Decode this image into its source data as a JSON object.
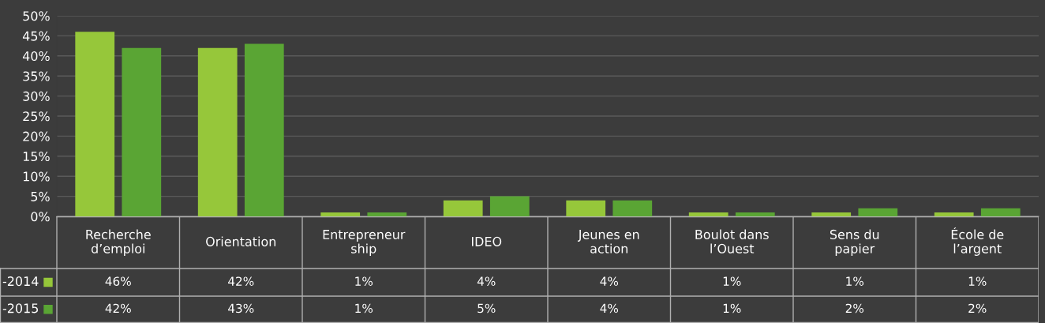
{
  "chart_data": {
    "type": "bar",
    "categories": [
      "Recherche\nd’emploi",
      "Orientation",
      "Entrepreneur\nship",
      "IDEO",
      "Jeunes en\naction",
      "Boulot dans\nl’Ouest",
      "Sens du\npapier",
      "École de\nl’argent"
    ],
    "series": [
      {
        "name": "-2014",
        "color": "#96c73a",
        "values": [
          46,
          42,
          1,
          4,
          4,
          1,
          1,
          1
        ],
        "value_labels": [
          "46%",
          "42%",
          "1%",
          "4%",
          "4%",
          "1%",
          "1%",
          "1%"
        ]
      },
      {
        "name": "-2015",
        "color": "#5aa534",
        "values": [
          42,
          43,
          1,
          5,
          4,
          1,
          2,
          2
        ],
        "value_labels": [
          "42%",
          "43%",
          "1%",
          "5%",
          "4%",
          "1%",
          "2%",
          "2%"
        ]
      }
    ],
    "ylim": [
      0,
      50
    ],
    "yticks": [
      {
        "value": 0,
        "label": "0%"
      },
      {
        "value": 5,
        "label": "5%"
      },
      {
        "value": 10,
        "label": "10%"
      },
      {
        "value": 15,
        "label": "15%"
      },
      {
        "value": 20,
        "label": "20%"
      },
      {
        "value": 25,
        "label": "25%"
      },
      {
        "value": 30,
        "label": "30%"
      },
      {
        "value": 35,
        "label": "35%"
      },
      {
        "value": 40,
        "label": "40%"
      },
      {
        "value": 45,
        "label": "45%"
      },
      {
        "value": 50,
        "label": "50%"
      }
    ],
    "grid": "y",
    "legend": "bottom left"
  }
}
